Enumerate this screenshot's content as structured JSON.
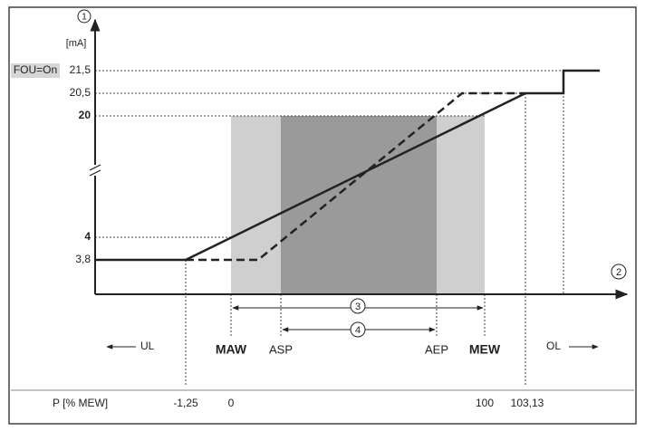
{
  "y_axis": {
    "marker": "1",
    "unit": "[mA]",
    "labels": [
      {
        "prefix": "FOU=On",
        "value": "21,5"
      },
      {
        "value": "20,5"
      },
      {
        "value": "20"
      },
      {
        "value": "4"
      },
      {
        "value": "3,8"
      }
    ]
  },
  "x_axis": {
    "marker": "2"
  },
  "dimensions": [
    "3",
    "4"
  ],
  "points": [
    "MAW",
    "ASP",
    "AEP",
    "MEW"
  ],
  "ranges": [
    "UL",
    "OL"
  ],
  "scale": {
    "label": "P [% MEW]",
    "values": [
      "-1,25",
      "0",
      "100",
      "103,13"
    ]
  }
}
